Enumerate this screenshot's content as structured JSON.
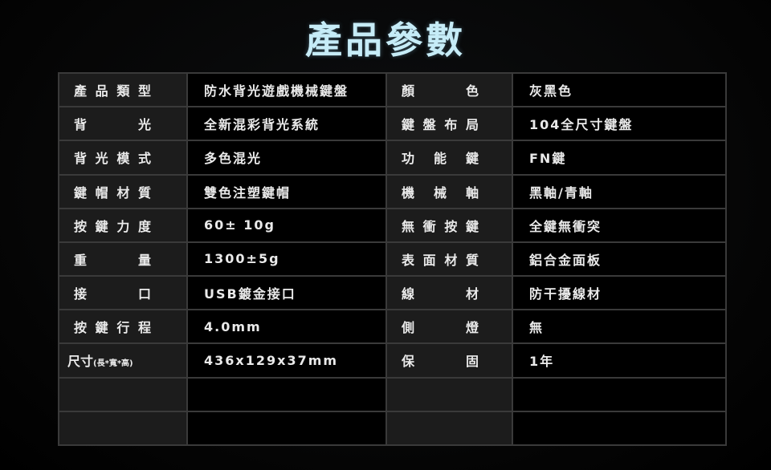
{
  "title": "產品參數",
  "colors": {
    "title": "#c6ecf7",
    "background": "#000000",
    "label_cell": "#1c1c1c",
    "grid": "#3a3a3a"
  },
  "rows": [
    {
      "l1": "產品類型",
      "v1": "防水背光遊戲機械鍵盤",
      "l2": "顏色",
      "v2": "灰黑色"
    },
    {
      "l1": "背光",
      "v1": "全新混彩背光系統",
      "l2": "鍵盤布局",
      "v2": "104全尺寸鍵盤"
    },
    {
      "l1": "背光模式",
      "v1": "多色混光",
      "l2": "功能鍵",
      "v2": "FN鍵"
    },
    {
      "l1": "鍵帽材質",
      "v1": "雙色注塑鍵帽",
      "l2": "機械軸",
      "v2": "黑軸/青軸"
    },
    {
      "l1": "按鍵力度",
      "v1": "60± 10g",
      "l2": "無衝按鍵",
      "v2": "全鍵無衝突"
    },
    {
      "l1": "重量",
      "v1": "1300±5g",
      "l2": "表面材質",
      "v2": "鋁合金面板"
    },
    {
      "l1": "接口",
      "v1": "USB鍍金接口",
      "l2": "線材",
      "v2": "防干擾線材"
    },
    {
      "l1": "按鍵行程",
      "v1": "4.0mm",
      "l2": "側燈",
      "v2": "無"
    },
    {
      "l1": "尺寸",
      "l1_sub": "(長*寬*高)",
      "v1": "436x129x37mm",
      "l2": "保固",
      "v2": "1年"
    }
  ]
}
